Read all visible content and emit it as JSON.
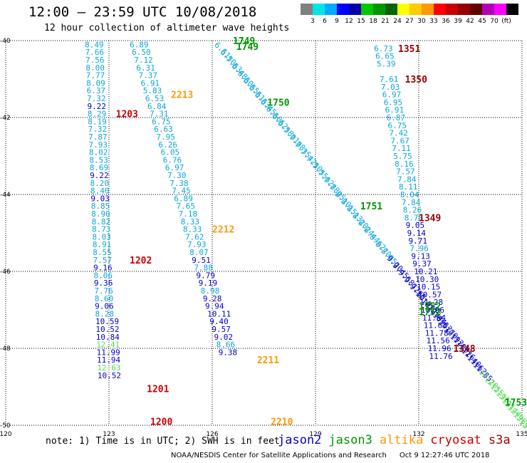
{
  "header": {
    "title": "12:00 — 23:59 UTC 10/08/2018",
    "subtitle": "12 hour collection of altimeter wave heights"
  },
  "colorbar": {
    "colors": [
      "#808080",
      "#00e6e6",
      "#00aaff",
      "#0000ff",
      "#0000aa",
      "#00c800",
      "#009600",
      "#006400",
      "#ffff00",
      "#ffcc00",
      "#ff9900",
      "#ff0000",
      "#c80000",
      "#960000",
      "#640000",
      "#b400b4",
      "#ff00ff",
      "#000000"
    ],
    "labels": [
      "3",
      "6",
      "9",
      "12",
      "15",
      "18",
      "21",
      "24",
      "27",
      "30",
      "33",
      "36",
      "39",
      "42",
      "45",
      "70",
      "(ft)"
    ]
  },
  "axes": {
    "lat_labels": [
      "-40",
      "-42",
      "-44",
      "-46",
      "-48",
      "-50"
    ],
    "lon_labels": [
      "120",
      "123",
      "126",
      "129",
      "132",
      "135"
    ]
  },
  "footer": {
    "note": "note: 1) Time is in UTC; 2) SWH is in feet",
    "legend": [
      {
        "name": "jason2",
        "color": "#0000cc"
      },
      {
        "name": "jason3",
        "color": "#009600"
      },
      {
        "name": "altika",
        "color": "#ff9900"
      },
      {
        "name": "cryosat",
        "color": "#cc0000"
      },
      {
        "name": "s3a",
        "color": "#990000"
      }
    ],
    "credit": "NOAA/NESDIS Center for Satellite Applications and Research",
    "timestamp": "Oct  9 12:27:46 UTC 2018"
  },
  "map_data": {
    "lon_range": [
      120,
      135
    ],
    "lat_range": [
      -50,
      -40
    ],
    "time_labels": [
      {
        "text": "1749",
        "lon": 126.6,
        "lat": -40.0,
        "color": "#009600"
      },
      {
        "text": "1749",
        "lon": 126.7,
        "lat": -40.15,
        "color": "#009600"
      },
      {
        "text": "1750",
        "lon": 127.6,
        "lat": -41.6,
        "color": "#009600"
      },
      {
        "text": "1751",
        "lon": 130.3,
        "lat": -44.3,
        "color": "#009600"
      },
      {
        "text": "1752",
        "lon": 132.0,
        "lat": -46.9,
        "color": "#009600"
      },
      {
        "text": "1752",
        "lon": 132.0,
        "lat": -47.05,
        "color": "#009600"
      },
      {
        "text": "1753",
        "lon": 134.5,
        "lat": -49.4,
        "color": "#009600"
      },
      {
        "text": "1351",
        "lon": 131.4,
        "lat": -40.2,
        "color": "#990000"
      },
      {
        "text": "1350",
        "lon": 131.6,
        "lat": -41.0,
        "color": "#990000"
      },
      {
        "text": "1349",
        "lon": 132.0,
        "lat": -44.6,
        "color": "#990000"
      },
      {
        "text": "1348",
        "lon": 133.0,
        "lat": -48.0,
        "color": "#990000"
      },
      {
        "text": "2213",
        "lon": 124.8,
        "lat": -41.4,
        "color": "#ff9900"
      },
      {
        "text": "2212",
        "lon": 126.0,
        "lat": -44.9,
        "color": "#ff9900"
      },
      {
        "text": "2211",
        "lon": 127.3,
        "lat": -48.3,
        "color": "#ff9900"
      },
      {
        "text": "2210",
        "lon": 127.7,
        "lat": -49.9,
        "color": "#ff9900"
      },
      {
        "text": "1203",
        "lon": 123.2,
        "lat": -41.9,
        "color": "#cc0000"
      },
      {
        "text": "1202",
        "lon": 123.6,
        "lat": -45.7,
        "color": "#cc0000"
      },
      {
        "text": "1201",
        "lon": 124.1,
        "lat": -49.05,
        "color": "#cc0000"
      },
      {
        "text": "1200",
        "lon": 124.2,
        "lat": -49.9,
        "color": "#cc0000"
      }
    ],
    "tracks": [
      {
        "name": "cryosat-track",
        "lon0": 122.3,
        "lat0": -40.1,
        "dlon": 0.0085,
        "dlat": -0.2,
        "values": [
          "8.49",
          "7.66",
          "7.56",
          "8.00",
          "7.77",
          "8.09",
          "6.37",
          "7.32",
          "9.22",
          "8.29",
          "8.19",
          "7.32",
          "7.87",
          "7.93",
          "8.02",
          "8.53",
          "8.69",
          "9.22",
          "8.20",
          "8.40",
          "9.03",
          "8.85",
          "8.90",
          "8.82",
          "8.73",
          "8.03",
          "8.91",
          "8.55",
          "7.57",
          "9.16",
          "8.06",
          "9.36",
          "7.76",
          "8.60",
          "9.06",
          "8.28",
          "10.59",
          "10.52",
          "10.84",
          "12.41",
          "11.99",
          "11.94",
          "12.63",
          "10.52"
        ]
      },
      {
        "name": "altika-track",
        "lon0": 123.6,
        "lat0": -40.1,
        "dlon": 0.0645,
        "dlat": -0.2,
        "values": [
          "6.89",
          "6.50",
          "7.12",
          "6.31",
          "7.37",
          "6.91",
          "5.83",
          "6.53",
          "6.84",
          "7.31",
          "6.75",
          "6.63",
          "7.95",
          "6.26",
          "6.05",
          "6.76",
          "6.97",
          "7.30",
          "7.38",
          "7.45",
          "6.89",
          "7.65",
          "7.18",
          "8.33",
          "8.33",
          "7.62",
          "7.93",
          "8.07",
          "9.51",
          "7.88",
          "9.79",
          "9.19",
          "8.98",
          "9.28",
          "9.94",
          "10.11",
          "9.40",
          "9.57",
          "9.02",
          "8.66",
          "9.38"
        ]
      },
      {
        "name": "s3a-track",
        "lon0": 130.7,
        "lat0": -40.2,
        "dlon": 0.04,
        "dlat": -0.2,
        "values": [
          "6.73",
          "6.65",
          "5.39",
          "",
          "7.61",
          "7.03",
          "6.97",
          "6.95",
          "6.91",
          "6.87",
          "6.75",
          "7.42",
          "7.67",
          "7.11",
          "5.75",
          "8.16",
          "7.57",
          "7.84",
          "8.11",
          "8.04",
          "7.84",
          "8.26",
          "8.78",
          "9.05",
          "9.14",
          "9.71",
          "7.96",
          "9.13",
          "9.37",
          "10.21",
          "10.30",
          "10.15",
          "10.57",
          "11.28",
          "10.96",
          "11.64",
          "11.61",
          "11.78",
          "11.56",
          "11.96",
          "11.76"
        ]
      }
    ]
  }
}
